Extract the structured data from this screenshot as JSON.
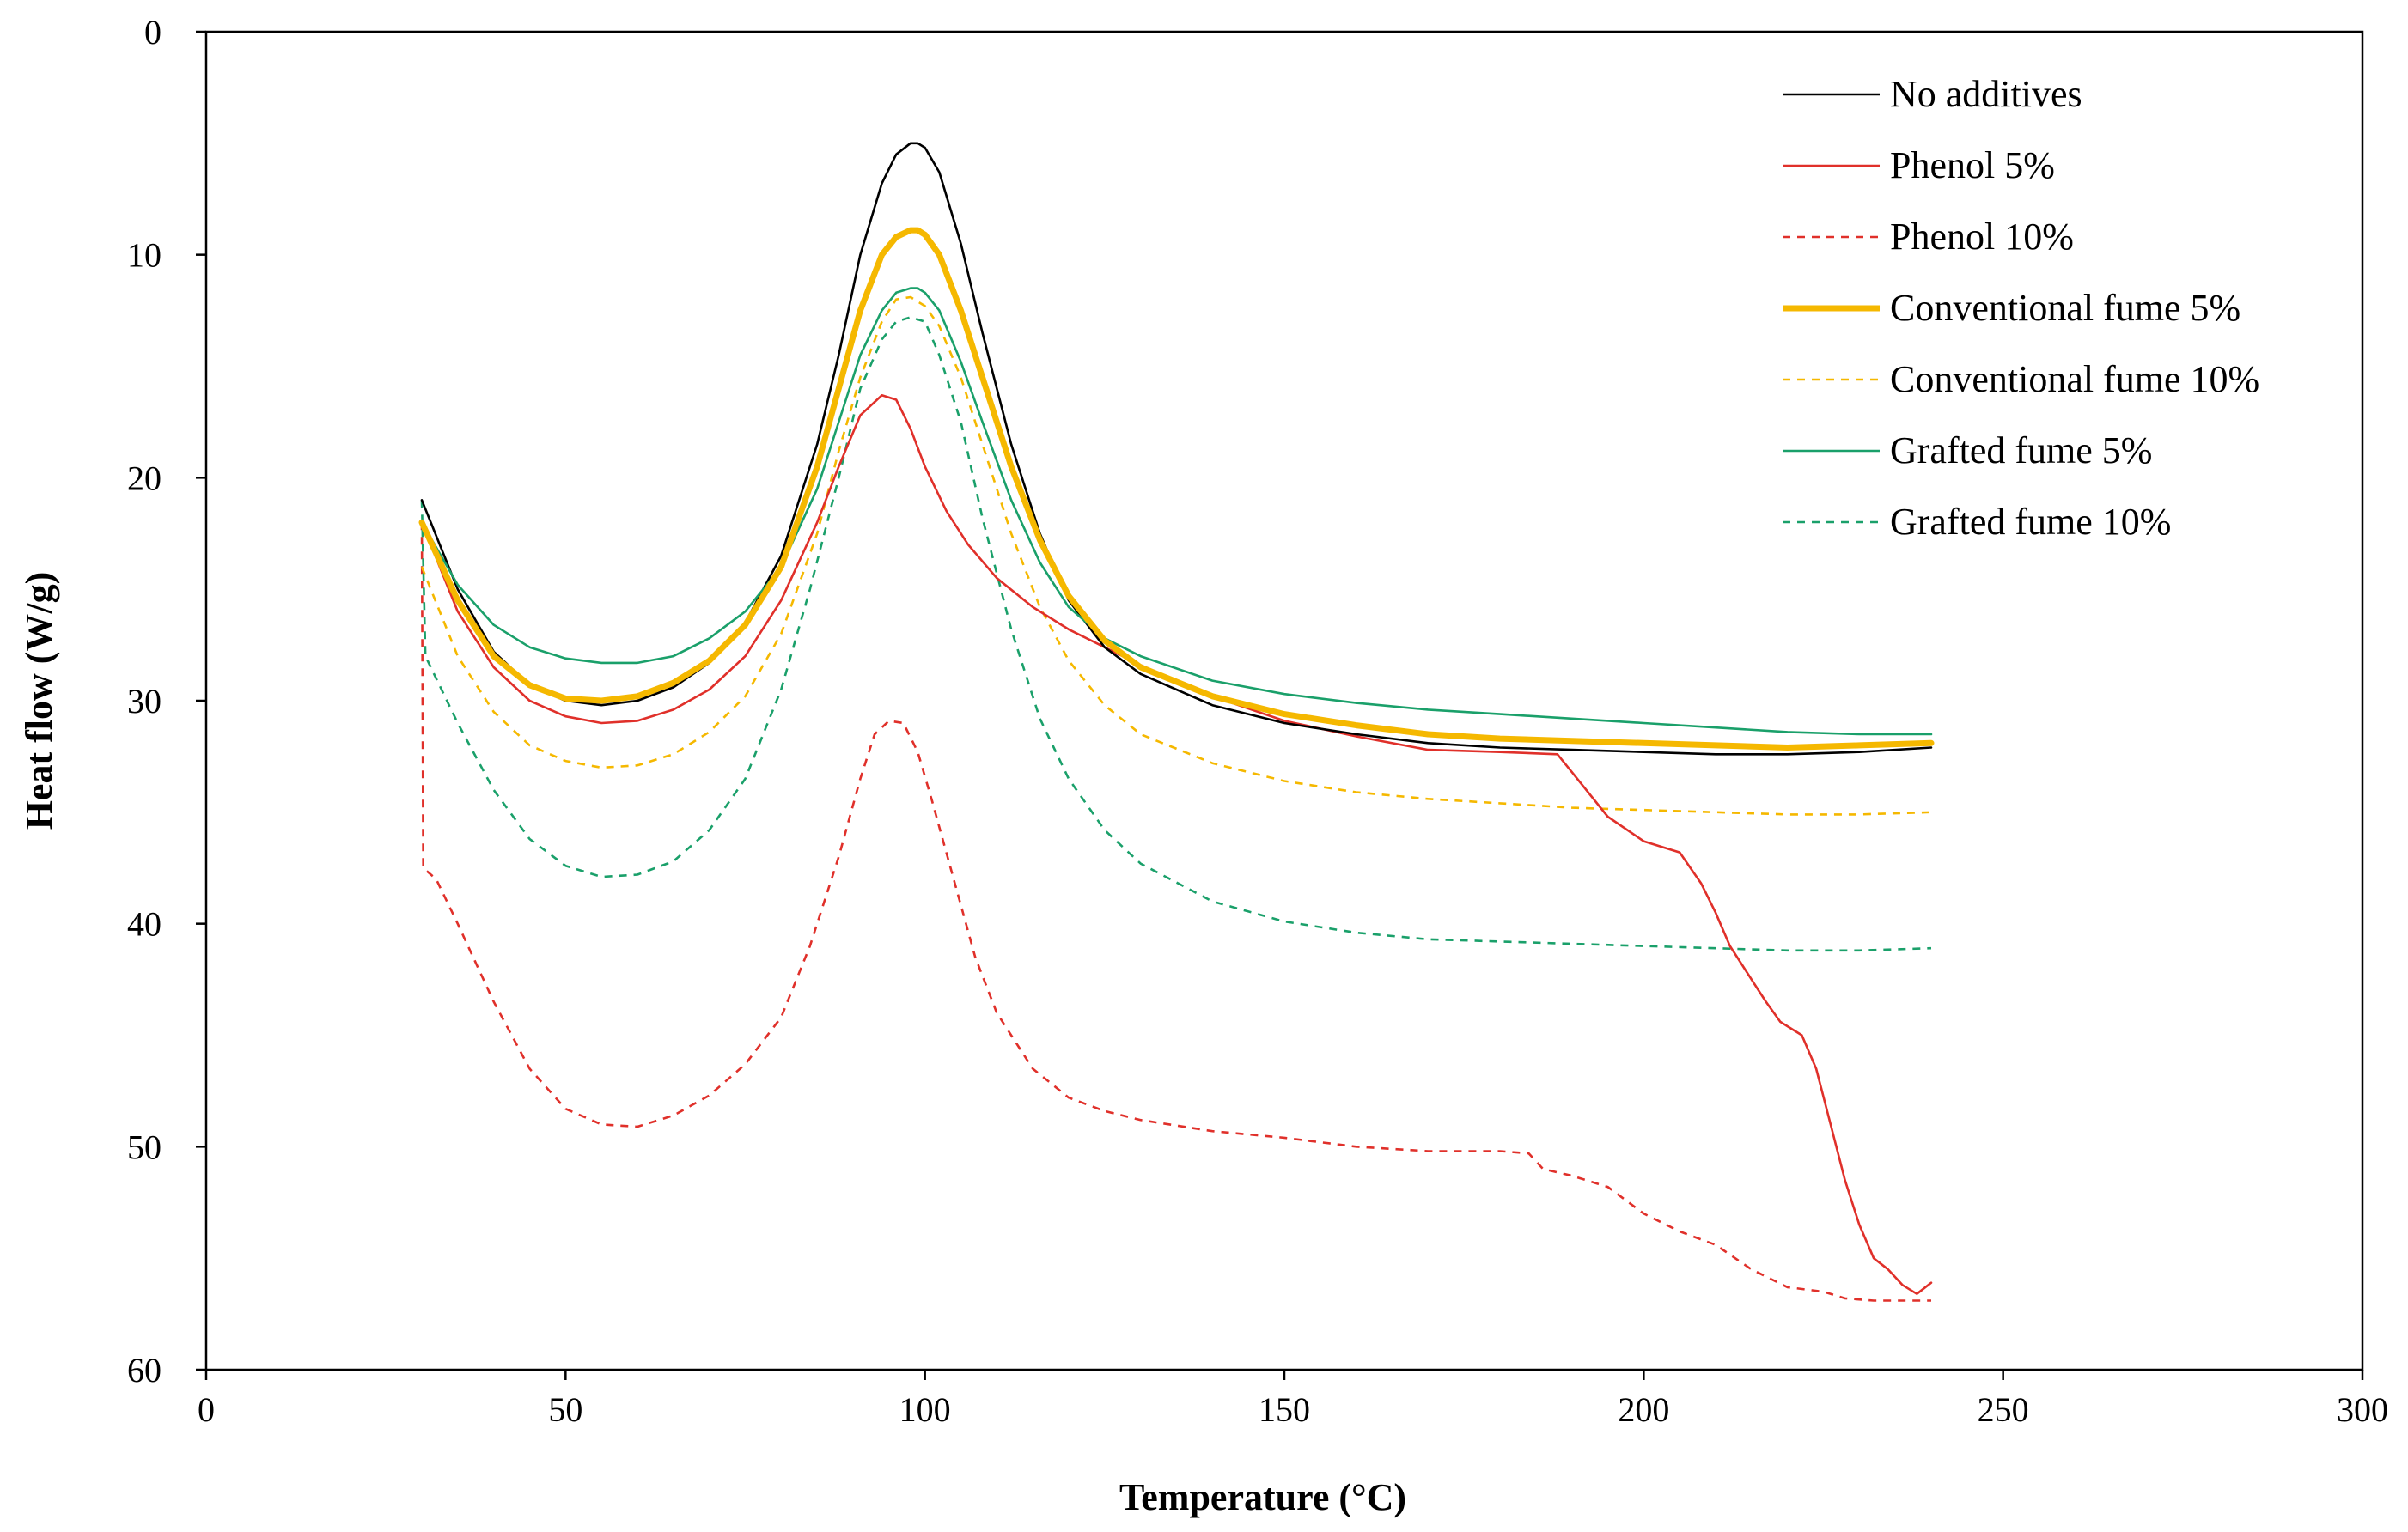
{
  "chart_data": {
    "type": "line",
    "title": "",
    "xlabel": "Temperature (°C)",
    "ylabel": "Heat flow (W/g)",
    "xlim": [
      0,
      300
    ],
    "ylim": [
      0,
      60
    ],
    "y_inverted": true,
    "grid": false,
    "legend_position": "top-right",
    "xticks": [
      "0",
      "50",
      "100",
      "150",
      "200",
      "250",
      "300"
    ],
    "yticks": [
      "0",
      "10",
      "20",
      "30",
      "40",
      "50",
      "60"
    ],
    "series": [
      {
        "name": "No additives",
        "color": "#000000",
        "dashed": false,
        "thick": false,
        "x": [
          30,
          35,
          40,
          45,
          50,
          55,
          60,
          65,
          70,
          75,
          80,
          85,
          88,
          91,
          94,
          96,
          98,
          99,
          100,
          102,
          105,
          108,
          112,
          116,
          120,
          125,
          130,
          140,
          150,
          160,
          170,
          180,
          190,
          200,
          210,
          220,
          230,
          240
        ],
        "y": [
          21.0,
          25.0,
          27.8,
          29.3,
          30.0,
          30.2,
          30.0,
          29.4,
          28.3,
          26.5,
          23.5,
          18.5,
          14.5,
          10.0,
          6.8,
          5.5,
          5.0,
          5.0,
          5.2,
          6.3,
          9.5,
          13.5,
          18.5,
          22.5,
          25.5,
          27.6,
          28.8,
          30.2,
          31.0,
          31.5,
          31.9,
          32.1,
          32.2,
          32.3,
          32.4,
          32.4,
          32.3,
          32.1
        ]
      },
      {
        "name": "Phenol 5%",
        "color": "#e0302a",
        "dashed": false,
        "thick": false,
        "x": [
          30,
          35,
          40,
          45,
          50,
          55,
          60,
          65,
          70,
          75,
          80,
          85,
          88,
          91,
          94,
          96,
          98,
          100,
          103,
          106,
          110,
          115,
          120,
          125,
          130,
          140,
          150,
          160,
          170,
          180,
          188,
          190,
          195,
          200,
          205,
          208,
          210,
          212,
          215,
          217,
          219,
          220,
          222,
          224,
          226,
          228,
          230,
          232,
          234,
          236,
          238,
          240
        ],
        "y": [
          22.0,
          26.0,
          28.5,
          30.0,
          30.7,
          31.0,
          30.9,
          30.4,
          29.5,
          28.0,
          25.5,
          22.0,
          19.5,
          17.2,
          16.3,
          16.5,
          17.8,
          19.5,
          21.5,
          23.0,
          24.5,
          25.8,
          26.8,
          27.6,
          28.4,
          29.8,
          30.9,
          31.6,
          32.2,
          32.3,
          32.4,
          33.2,
          35.2,
          36.3,
          36.8,
          38.2,
          39.5,
          41.0,
          42.5,
          43.5,
          44.4,
          44.6,
          45.0,
          46.5,
          49.0,
          51.5,
          53.5,
          55.0,
          55.5,
          56.2,
          56.6,
          56.1
        ]
      },
      {
        "name": "Phenol 10%",
        "color": "#e0302a",
        "dashed": true,
        "thick": false,
        "x": [
          30,
          30.2,
          32,
          35,
          40,
          45,
          50,
          55,
          60,
          65,
          70,
          75,
          80,
          84,
          88,
          91,
          93,
          95,
          97,
          99,
          101,
          104,
          107,
          110,
          115,
          120,
          125,
          130,
          140,
          150,
          160,
          170,
          180,
          184,
          186,
          190,
          195,
          200,
          205,
          210,
          215,
          220,
          225,
          228,
          232,
          236,
          240
        ],
        "y": [
          22.0,
          37.5,
          38.0,
          40.0,
          43.5,
          46.5,
          48.3,
          49.0,
          49.1,
          48.6,
          47.7,
          46.3,
          44.2,
          41.0,
          37.0,
          33.5,
          31.5,
          30.9,
          31.0,
          32.3,
          34.5,
          38.0,
          41.5,
          44.0,
          46.5,
          47.8,
          48.4,
          48.8,
          49.3,
          49.6,
          50.0,
          50.2,
          50.2,
          50.3,
          51.0,
          51.3,
          51.8,
          53.0,
          53.8,
          54.4,
          55.5,
          56.3,
          56.5,
          56.8,
          56.9,
          56.9,
          56.9
        ]
      },
      {
        "name": "Conventional fume 5%",
        "color": "#f5b800",
        "dashed": false,
        "thick": true,
        "x": [
          30,
          35,
          40,
          45,
          50,
          55,
          60,
          65,
          70,
          75,
          80,
          85,
          88,
          91,
          94,
          96,
          98,
          99,
          100,
          102,
          105,
          108,
          112,
          116,
          120,
          125,
          130,
          140,
          150,
          160,
          170,
          180,
          190,
          200,
          210,
          220,
          230,
          240
        ],
        "y": [
          22.0,
          25.5,
          28.0,
          29.3,
          29.9,
          30.0,
          29.8,
          29.2,
          28.2,
          26.6,
          24.0,
          19.5,
          16.0,
          12.5,
          10.0,
          9.2,
          8.9,
          8.9,
          9.1,
          10.0,
          12.5,
          15.5,
          19.5,
          22.8,
          25.3,
          27.3,
          28.5,
          29.8,
          30.6,
          31.1,
          31.5,
          31.7,
          31.8,
          31.9,
          32.0,
          32.1,
          32.0,
          31.9
        ]
      },
      {
        "name": "Conventional fume 10%",
        "color": "#f5b800",
        "dashed": true,
        "thick": false,
        "x": [
          30,
          35,
          40,
          45,
          50,
          55,
          60,
          65,
          70,
          75,
          80,
          85,
          88,
          91,
          94,
          96,
          98,
          100,
          102,
          105,
          108,
          112,
          116,
          120,
          125,
          130,
          140,
          150,
          160,
          170,
          180,
          190,
          200,
          210,
          220,
          230,
          240
        ],
        "y": [
          24.0,
          28.0,
          30.5,
          32.0,
          32.7,
          33.0,
          32.9,
          32.4,
          31.4,
          29.8,
          27.0,
          22.5,
          18.8,
          15.5,
          13.0,
          12.0,
          11.9,
          12.3,
          13.2,
          15.5,
          18.5,
          22.5,
          25.8,
          28.2,
          30.2,
          31.5,
          32.8,
          33.6,
          34.1,
          34.4,
          34.6,
          34.8,
          34.9,
          35.0,
          35.1,
          35.1,
          35.0
        ]
      },
      {
        "name": "Grafted fume 5%",
        "color": "#1aa06a",
        "dashed": false,
        "thick": false,
        "x": [
          30,
          35,
          40,
          45,
          50,
          55,
          60,
          65,
          70,
          75,
          80,
          85,
          88,
          91,
          94,
          96,
          98,
          99,
          100,
          102,
          105,
          108,
          112,
          116,
          120,
          125,
          130,
          140,
          150,
          160,
          170,
          180,
          190,
          200,
          210,
          220,
          230,
          240
        ],
        "y": [
          22.0,
          24.8,
          26.6,
          27.6,
          28.1,
          28.3,
          28.3,
          28.0,
          27.2,
          26.0,
          24.0,
          20.5,
          17.5,
          14.5,
          12.5,
          11.7,
          11.5,
          11.5,
          11.7,
          12.5,
          14.8,
          17.5,
          21.0,
          23.8,
          25.8,
          27.2,
          28.0,
          29.1,
          29.7,
          30.1,
          30.4,
          30.6,
          30.8,
          31.0,
          31.2,
          31.4,
          31.5,
          31.5
        ]
      },
      {
        "name": "Grafted fume 10%",
        "color": "#1aa06a",
        "dashed": true,
        "thick": false,
        "x": [
          30,
          30.5,
          35,
          40,
          45,
          50,
          55,
          60,
          65,
          70,
          75,
          80,
          84,
          88,
          91,
          94,
          96,
          98,
          100,
          102,
          105,
          108,
          112,
          116,
          120,
          125,
          130,
          140,
          150,
          160,
          170,
          180,
          190,
          200,
          210,
          220,
          230,
          240
        ],
        "y": [
          21.0,
          28.0,
          31.0,
          34.0,
          36.2,
          37.4,
          37.9,
          37.8,
          37.2,
          35.8,
          33.5,
          29.5,
          25.0,
          20.0,
          16.0,
          13.8,
          13.0,
          12.8,
          13.0,
          14.5,
          17.5,
          21.8,
          26.8,
          30.8,
          33.5,
          35.8,
          37.3,
          39.0,
          39.9,
          40.4,
          40.7,
          40.8,
          40.9,
          41.0,
          41.1,
          41.2,
          41.2,
          41.1
        ]
      }
    ]
  }
}
